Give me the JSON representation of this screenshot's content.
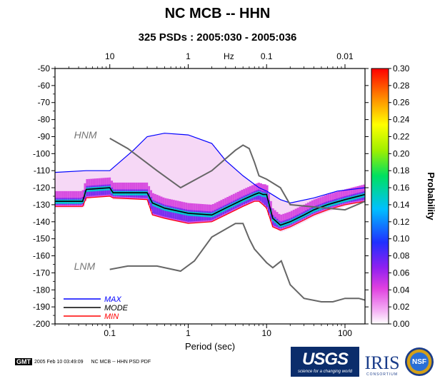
{
  "title": "NC MCB -- HHN",
  "subtitle": "325 PSDs : 2005:030 - 2005:036",
  "chart_data": {
    "type": "heatmap",
    "title": "NC MCB -- HHN",
    "subtitle": "325 PSDs : 2005:030 - 2005:036",
    "xlabel": "Period (sec)",
    "xlabel_top": "Hz",
    "ylabel": "",
    "xscale": "log",
    "xlim": [
      0.02,
      180
    ],
    "ylim": [
      -200,
      -50
    ],
    "x_ticks": [
      {
        "v": 0.1,
        "label": "0.1"
      },
      {
        "v": 1,
        "label": "1"
      },
      {
        "v": 10,
        "label": "10"
      },
      {
        "v": 100,
        "label": "100"
      }
    ],
    "x_top_ticks": [
      {
        "v": 0.1,
        "label": "10"
      },
      {
        "v": 1,
        "label": "1"
      },
      {
        "v": 10,
        "label": "0.1"
      },
      {
        "v": 100,
        "label": "0.01"
      }
    ],
    "y_ticks": [
      -50,
      -60,
      -70,
      -80,
      -90,
      -100,
      -110,
      -120,
      -130,
      -140,
      -150,
      -160,
      -170,
      -180,
      -190,
      -200
    ],
    "colorbar": {
      "label": "Probability",
      "min": 0,
      "max": 0.3,
      "ticks": [
        "0.00",
        "0.02",
        "0.04",
        "0.06",
        "0.08",
        "0.10",
        "0.12",
        "0.14",
        "0.16",
        "0.18",
        "0.20",
        "0.22",
        "0.24",
        "0.26",
        "0.28",
        "0.30"
      ]
    },
    "legend": [
      {
        "name": "MAX",
        "color": "#0000ff"
      },
      {
        "name": "MODE",
        "color": "#000000"
      },
      {
        "name": "MIN",
        "color": "#ff0000"
      }
    ],
    "legend_position": "bottom-left",
    "annotations": [
      {
        "text": "HNM",
        "x": 0.045,
        "y": -89
      },
      {
        "text": "LNM",
        "x": 0.045,
        "y": -166
      }
    ],
    "series": [
      {
        "name": "MAX",
        "color": "#0000ff",
        "x": [
          0.02,
          0.05,
          0.1,
          0.2,
          0.3,
          0.5,
          1,
          2,
          3,
          5,
          8,
          10,
          15,
          20,
          40,
          80,
          180
        ],
        "y": [
          -111,
          -110,
          -110,
          -98,
          -90,
          -88,
          -89,
          -94,
          -104,
          -113,
          -120,
          -122,
          -127,
          -129,
          -126,
          -122,
          -120
        ]
      },
      {
        "name": "MODE",
        "color": "#000000",
        "x": [
          0.02,
          0.045,
          0.05,
          0.1,
          0.11,
          0.3,
          0.35,
          0.5,
          1,
          2,
          3,
          5,
          7,
          8,
          9,
          10,
          12,
          15,
          20,
          30,
          40,
          60,
          100,
          180
        ],
        "y": [
          -128,
          -128,
          -121,
          -120,
          -123,
          -123,
          -129,
          -132,
          -135,
          -136,
          -132,
          -127,
          -124,
          -123,
          -124,
          -124,
          -138,
          -142,
          -140,
          -136,
          -133,
          -130,
          -127,
          -124
        ]
      },
      {
        "name": "MIN",
        "color": "#ff0000",
        "x": [
          0.02,
          0.045,
          0.05,
          0.1,
          0.11,
          0.3,
          0.35,
          0.5,
          1,
          2,
          3,
          5,
          7,
          8,
          9,
          10,
          12,
          15,
          20,
          30,
          40,
          60,
          100,
          180
        ],
        "y": [
          -131,
          -131,
          -126,
          -125,
          -126,
          -127,
          -136,
          -138,
          -141,
          -140,
          -136,
          -131,
          -128,
          -128,
          -130,
          -132,
          -143,
          -145,
          -143,
          -139,
          -136,
          -133,
          -130,
          -128
        ]
      },
      {
        "name": "HNM",
        "color": "#666666",
        "x": [
          0.1,
          0.17,
          0.4,
          0.8,
          2,
          4,
          5,
          6,
          7,
          8,
          10,
          15,
          20,
          100,
          180
        ],
        "y": [
          -91,
          -97,
          -110,
          -120,
          -110,
          -98,
          -95,
          -97,
          -105,
          -113,
          -115,
          -120,
          -130,
          -133,
          -128
        ]
      },
      {
        "name": "LNM",
        "color": "#666666",
        "x": [
          0.1,
          0.17,
          0.4,
          0.8,
          1.2,
          2,
          4,
          5,
          6,
          7,
          10,
          12,
          15.4,
          20,
          30,
          50,
          70,
          100,
          150,
          180
        ],
        "y": [
          -168,
          -166,
          -166,
          -169,
          -163,
          -149,
          -141,
          -141,
          -150,
          -156,
          -164,
          -167,
          -163,
          -177,
          -185,
          -187,
          -187,
          -185,
          -185,
          -186
        ]
      }
    ]
  },
  "footer": {
    "gmt_label": "GMT",
    "timestamp": "2005 Feb 10 03:49:09",
    "caption": "NC MCB -- HHN PSD PDF"
  },
  "logos": {
    "usgs": "USGS",
    "usgs_tagline": "science for a changing world",
    "iris": "IRIS",
    "iris_sub": "CONSORTIUM",
    "nsf": "NSF"
  }
}
